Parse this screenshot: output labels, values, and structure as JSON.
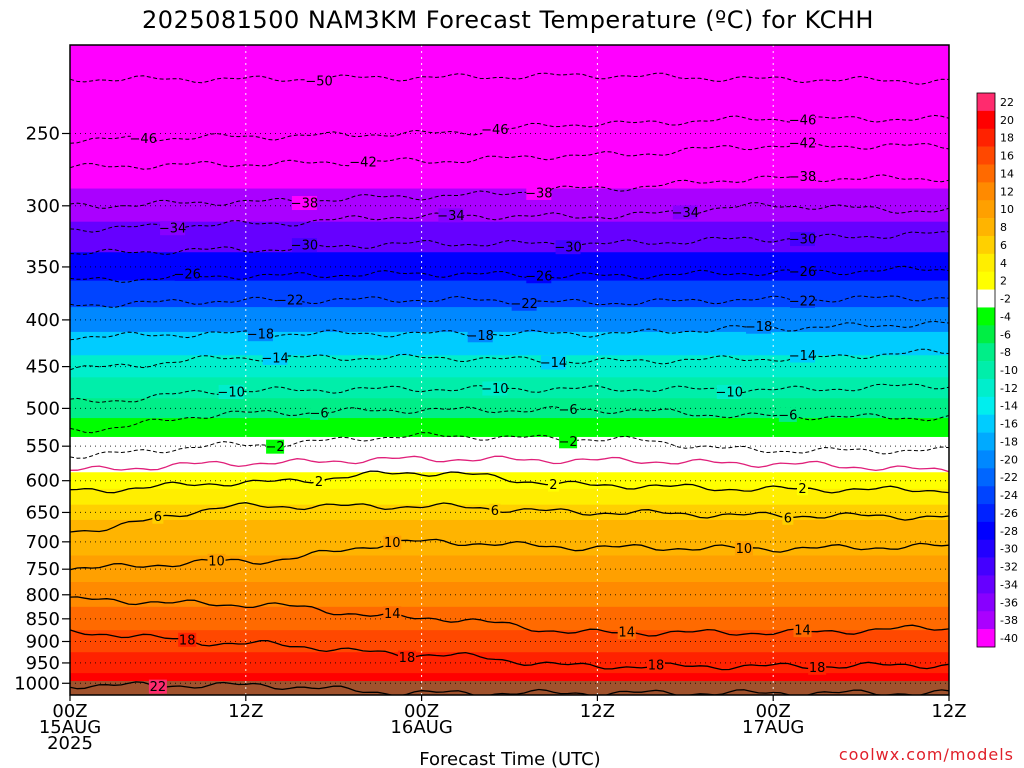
{
  "chart_data": {
    "type": "heatmap",
    "title": "2025081500 NAM3KM Forecast Temperature (ºC) for KCHH",
    "xlabel": "Forecast Time (UTC)",
    "credit": "coolwx.com/models",
    "x_ticks": [
      {
        "hour": 0,
        "lines": [
          "00Z",
          "15AUG",
          "2025"
        ]
      },
      {
        "hour": 12,
        "lines": [
          "12Z"
        ]
      },
      {
        "hour": 24,
        "lines": [
          "00Z",
          "16AUG"
        ]
      },
      {
        "hour": 36,
        "lines": [
          "12Z"
        ]
      },
      {
        "hour": 48,
        "lines": [
          "00Z",
          "17AUG"
        ]
      },
      {
        "hour": 60,
        "lines": [
          "12Z"
        ]
      }
    ],
    "xlim": [
      0,
      60
    ],
    "y_ticks": [
      250,
      300,
      350,
      400,
      450,
      500,
      550,
      600,
      650,
      700,
      750,
      800,
      850,
      900,
      950,
      1000
    ],
    "ylim": [
      200,
      1030
    ],
    "y_scale": "log-pressure",
    "colorbar": {
      "levels": [
        22,
        20,
        18,
        16,
        14,
        12,
        10,
        8,
        6,
        4,
        2,
        -2,
        -4,
        -6,
        -8,
        -10,
        -12,
        -14,
        -16,
        -18,
        -20,
        -22,
        -24,
        -26,
        -28,
        -30,
        -32,
        -34,
        -36,
        -38,
        -40
      ],
      "colors": [
        "#ff2b6e",
        "#ff0000",
        "#ff2200",
        "#ff4800",
        "#ff6a00",
        "#ff8a00",
        "#ffa000",
        "#ffb400",
        "#ffd000",
        "#ffee00",
        "#ffff00",
        "#ffffff",
        "#00ff00",
        "#00ee44",
        "#00ee88",
        "#00eeaa",
        "#00eecc",
        "#00eeee",
        "#00ccff",
        "#00aaff",
        "#0088ff",
        "#0066ff",
        "#0044ff",
        "#0022ff",
        "#0000ff",
        "#2200ff",
        "#4400ff",
        "#6600ff",
        "#8800ff",
        "#aa00ff",
        "#ff00ff"
      ]
    },
    "profile": [
      {
        "p": 225,
        "t": -48
      },
      {
        "p": 250,
        "t": -44
      },
      {
        "p": 275,
        "t": -41
      },
      {
        "p": 300,
        "t": -37
      },
      {
        "p": 325,
        "t": -33
      },
      {
        "p": 350,
        "t": -28
      },
      {
        "p": 375,
        "t": -24
      },
      {
        "p": 400,
        "t": -20
      },
      {
        "p": 425,
        "t": -16
      },
      {
        "p": 450,
        "t": -12
      },
      {
        "p": 475,
        "t": -10
      },
      {
        "p": 500,
        "t": -7
      },
      {
        "p": 525,
        "t": -4
      },
      {
        "p": 550,
        "t": -2
      },
      {
        "p": 575,
        "t": 0
      },
      {
        "p": 600,
        "t": 2
      },
      {
        "p": 625,
        "t": 4
      },
      {
        "p": 650,
        "t": 6
      },
      {
        "p": 675,
        "t": 8
      },
      {
        "p": 700,
        "t": 9
      },
      {
        "p": 750,
        "t": 11
      },
      {
        "p": 800,
        "t": 13
      },
      {
        "p": 850,
        "t": 15
      },
      {
        "p": 900,
        "t": 17
      },
      {
        "p": 950,
        "t": 19
      },
      {
        "p": 1000,
        "t": 21
      }
    ],
    "contours": [
      {
        "value": -50,
        "dashed": true,
        "p": [
          218,
          218,
          217,
          216,
          218,
          219
        ],
        "label_hours": [
          17
        ]
      },
      {
        "value": -46,
        "dashed": true,
        "p": [
          254,
          252,
          250,
          244,
          241,
          241
        ],
        "label_hours": [
          5,
          29,
          50
        ]
      },
      {
        "value": -42,
        "dashed": true,
        "p": [
          272,
          270,
          268,
          264,
          258,
          258
        ],
        "label_hours": [
          20,
          50
        ]
      },
      {
        "value": -38,
        "dashed": true,
        "p": [
          300,
          297,
          293,
          287,
          280,
          280
        ],
        "label_hours": [
          16,
          32,
          50
        ]
      },
      {
        "value": -34,
        "dashed": true,
        "p": [
          318,
          314,
          308,
          308,
          300,
          304
        ],
        "label_hours": [
          7,
          26,
          42
        ]
      },
      {
        "value": -30,
        "dashed": true,
        "p": [
          338,
          335,
          330,
          330,
          326,
          322
        ],
        "label_hours": [
          16,
          34,
          50
        ]
      },
      {
        "value": -26,
        "dashed": true,
        "p": [
          362,
          358,
          356,
          358,
          355,
          352
        ],
        "label_hours": [
          8,
          32,
          50
        ]
      },
      {
        "value": -22,
        "dashed": true,
        "p": [
          385,
          381,
          380,
          383,
          380,
          378
        ],
        "label_hours": [
          15,
          31,
          50
        ]
      },
      {
        "value": -18,
        "dashed": true,
        "p": [
          417,
          414,
          414,
          414,
          408,
          404
        ],
        "label_hours": [
          13,
          28,
          47
        ]
      },
      {
        "value": -14,
        "dashed": true,
        "p": [
          452,
          440,
          440,
          444,
          441,
          434
        ],
        "label_hours": [
          14,
          33,
          50
        ]
      },
      {
        "value": -10,
        "dashed": true,
        "p": [
          492,
          478,
          476,
          476,
          477,
          472
        ],
        "label_hours": [
          11,
          29,
          45
        ]
      },
      {
        "value": -6,
        "dashed": true,
        "p": [
          528,
          506,
          502,
          502,
          510,
          512
        ],
        "label_hours": [
          17,
          34,
          49
        ]
      },
      {
        "value": -2,
        "dashed": true,
        "p": [
          563,
          548,
          536,
          540,
          556,
          556
        ],
        "label_hours": [
          14,
          34
        ]
      },
      {
        "value": 0,
        "dashed": false,
        "color": "#e0207a",
        "p": [
          584,
          574,
          568,
          570,
          575,
          584
        ],
        "label_hours": []
      },
      {
        "value": 2,
        "dashed": false,
        "p": [
          615,
          603,
          588,
          607,
          613,
          614
        ],
        "label_hours": [
          17,
          33,
          50
        ]
      },
      {
        "value": 6,
        "dashed": false,
        "p": [
          680,
          640,
          640,
          650,
          655,
          657
        ],
        "label_hours": [
          6,
          29,
          49
        ]
      },
      {
        "value": 10,
        "dashed": false,
        "p": [
          748,
          735,
          700,
          710,
          712,
          708
        ],
        "label_hours": [
          10,
          22,
          46
        ]
      },
      {
        "value": 14,
        "dashed": false,
        "p": [
          810,
          820,
          848,
          880,
          880,
          870
        ],
        "label_hours": [
          22,
          38,
          50
        ]
      },
      {
        "value": 18,
        "dashed": false,
        "p": [
          880,
          905,
          930,
          958,
          958,
          955
        ],
        "label_hours": [
          8,
          23,
          40,
          51
        ]
      },
      {
        "value": 22,
        "dashed": false,
        "p": [
          1005,
          1005,
          1025,
          1025,
          1025,
          1025
        ],
        "label_hours": [
          6
        ]
      }
    ]
  }
}
